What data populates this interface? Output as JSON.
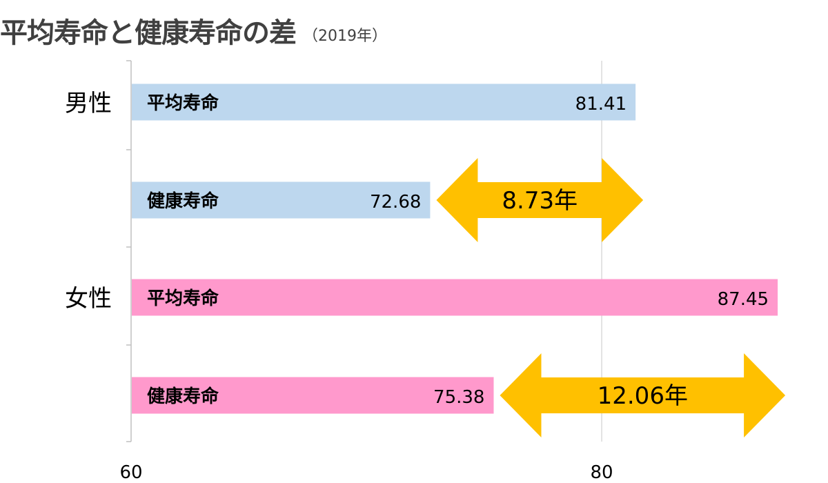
{
  "header": {
    "title": "平均寿命と健康寿命の差",
    "subtitle": "（2019年）"
  },
  "chart_data": {
    "type": "bar",
    "orientation": "horizontal",
    "title": "平均寿命と健康寿命の差",
    "subtitle": "（2019年）",
    "xlim": [
      60,
      89.5
    ],
    "x_ticks": [
      60,
      80
    ],
    "grid": "vertical at 80",
    "groups": [
      {
        "name": "男性",
        "color": "#bdd7ee",
        "bars": [
          {
            "label": "平均寿命",
            "value": 81.41,
            "value_text": "81.41"
          },
          {
            "label": "健康寿命",
            "value": 72.68,
            "value_text": "72.68"
          }
        ],
        "gap": {
          "from": 72.68,
          "to": 81.41,
          "label": "8.73年"
        }
      },
      {
        "name": "女性",
        "color": "#ff99cc",
        "bars": [
          {
            "label": "平均寿命",
            "value": 87.45,
            "value_text": "87.45"
          },
          {
            "label": "健康寿命",
            "value": 75.38,
            "value_text": "75.38"
          }
        ],
        "gap": {
          "from": 75.38,
          "to": 87.45,
          "label": "12.06年"
        }
      }
    ],
    "arrow_color": "#ffc000"
  }
}
